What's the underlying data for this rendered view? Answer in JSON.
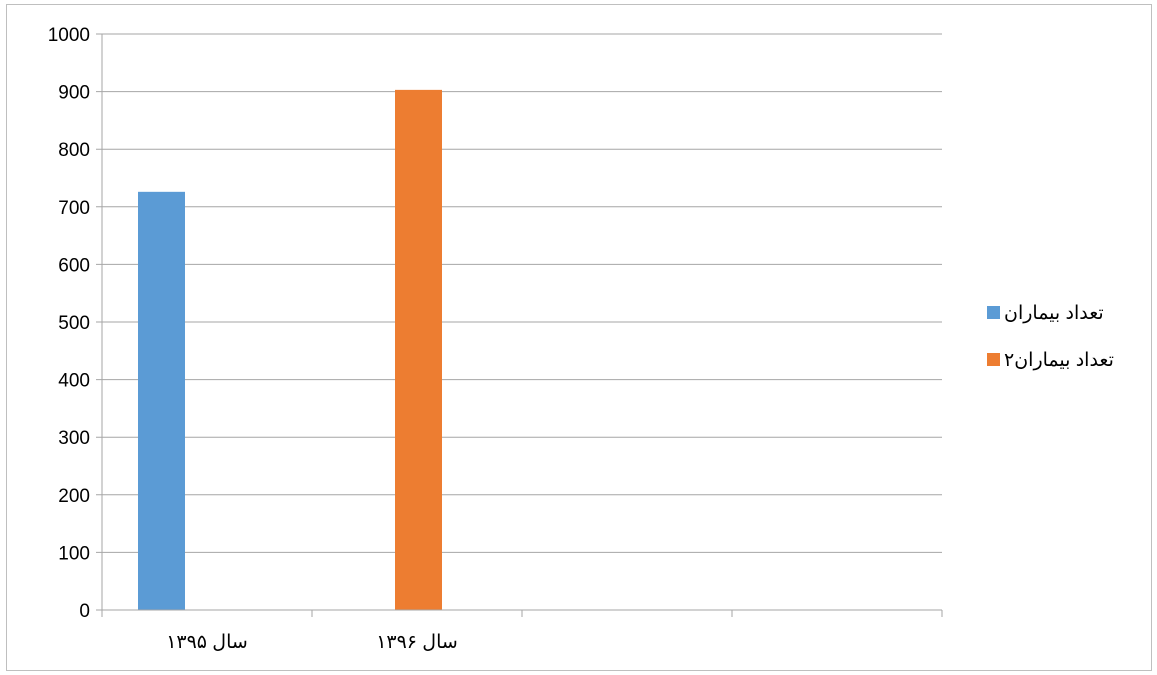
{
  "chart_data": {
    "type": "bar",
    "title": "",
    "xlabel": "",
    "ylabel": "",
    "categories": [
      "سال ۱۳۹۵",
      "سال ۱۳۹۶",
      "",
      ""
    ],
    "series": [
      {
        "name": "تعداد بیماران",
        "color": "#5B9BD5",
        "values": [
          726,
          null,
          null,
          null
        ]
      },
      {
        "name": "تعداد بیماران۲",
        "color": "#ED7D31",
        "values": [
          null,
          903,
          null,
          null
        ]
      }
    ],
    "ylim": [
      0,
      1000
    ],
    "yticks": [
      0,
      100,
      200,
      300,
      400,
      500,
      600,
      700,
      800,
      900,
      1000
    ],
    "grid": true,
    "legend_position": "right"
  }
}
